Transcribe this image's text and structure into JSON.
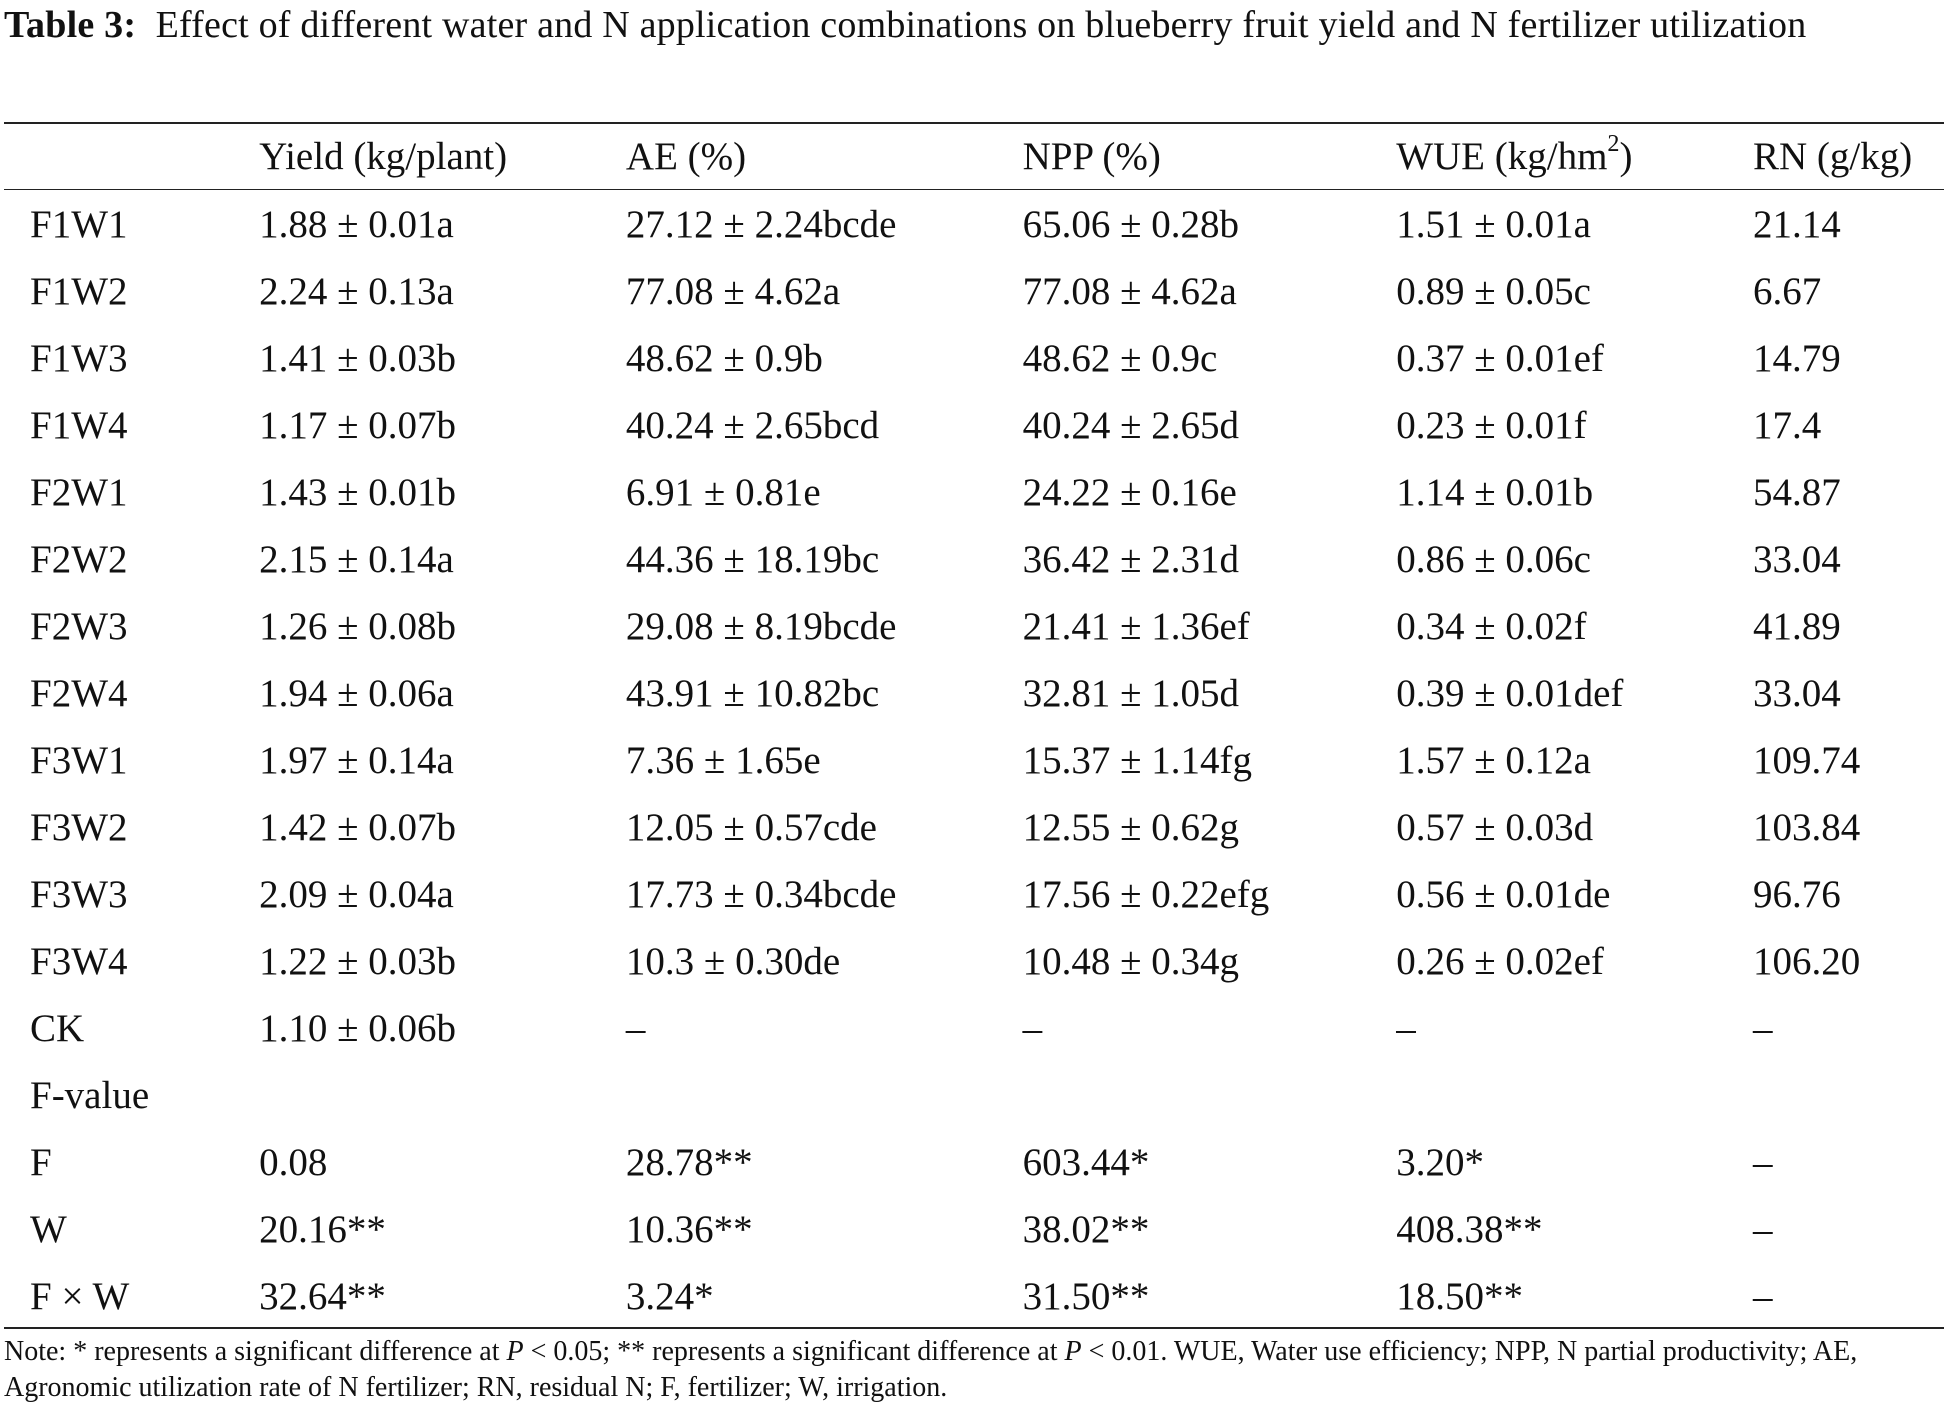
{
  "caption": {
    "label": "Table 3:",
    "text": "Effect of different water and N application combinations on blueberry fruit yield and N fertilizer utilization"
  },
  "table": {
    "headers": {
      "treatment": "",
      "yield": "Yield (kg/plant)",
      "ae": "AE (%)",
      "npp": "NPP (%)",
      "wue_prefix": "WUE (kg/hm",
      "wue_sup": "2",
      "wue_suffix": ")",
      "rn": "RN (g/kg)"
    },
    "rows": [
      [
        "F1W1",
        "1.88 ± 0.01a",
        "27.12 ± 2.24bcde",
        "65.06 ± 0.28b",
        "1.51 ± 0.01a",
        "21.14"
      ],
      [
        "F1W2",
        "2.24 ± 0.13a",
        "77.08 ± 4.62a",
        "77.08 ± 4.62a",
        "0.89 ± 0.05c",
        "6.67"
      ],
      [
        "F1W3",
        "1.41 ± 0.03b",
        "48.62 ± 0.9b",
        "48.62 ± 0.9c",
        "0.37 ± 0.01ef",
        "14.79"
      ],
      [
        "F1W4",
        "1.17 ± 0.07b",
        "40.24 ± 2.65bcd",
        "40.24 ± 2.65d",
        "0.23 ± 0.01f",
        "17.4"
      ],
      [
        "F2W1",
        "1.43 ± 0.01b",
        "6.91 ± 0.81e",
        "24.22 ± 0.16e",
        "1.14 ± 0.01b",
        "54.87"
      ],
      [
        "F2W2",
        "2.15 ± 0.14a",
        "44.36 ± 18.19bc",
        "36.42 ± 2.31d",
        "0.86 ± 0.06c",
        "33.04"
      ],
      [
        "F2W3",
        "1.26 ± 0.08b",
        "29.08 ± 8.19bcde",
        "21.41 ± 1.36ef",
        "0.34 ± 0.02f",
        "41.89"
      ],
      [
        "F2W4",
        "1.94 ± 0.06a",
        "43.91 ± 10.82bc",
        "32.81 ± 1.05d",
        "0.39 ± 0.01def",
        "33.04"
      ],
      [
        "F3W1",
        "1.97 ± 0.14a",
        "7.36 ± 1.65e",
        "15.37 ± 1.14fg",
        "1.57 ± 0.12a",
        "109.74"
      ],
      [
        "F3W2",
        "1.42 ± 0.07b",
        "12.05 ± 0.57cde",
        "12.55 ± 0.62g",
        "0.57 ± 0.03d",
        "103.84"
      ],
      [
        "F3W3",
        "2.09 ± 0.04a",
        "17.73 ± 0.34bcde",
        "17.56 ± 0.22efg",
        "0.56 ± 0.01de",
        "96.76"
      ],
      [
        "F3W4",
        "1.22 ± 0.03b",
        "10.3 ± 0.30de",
        "10.48 ± 0.34g",
        "0.26 ± 0.02ef",
        "106.20"
      ],
      [
        "CK",
        "1.10 ± 0.06b",
        "–",
        "–",
        "–",
        "–"
      ],
      [
        "F-value",
        "",
        "",
        "",
        "",
        ""
      ],
      [
        "F",
        "0.08",
        "28.78**",
        "603.44*",
        "3.20*",
        "–"
      ],
      [
        "W",
        "20.16**",
        "10.36**",
        "38.02**",
        "408.38**",
        "–"
      ],
      [
        "F × W",
        "32.64**",
        "3.24*",
        "31.50**",
        "18.50**",
        "–"
      ]
    ]
  },
  "note": {
    "part1": "Note: * represents a significant difference at ",
    "p1": "P",
    "part2": " < 0.05; ** represents a significant difference at ",
    "p2": "P",
    "part3": " < 0.01. WUE, Water use efficiency; NPP, N partial productivity; AE, Agronomic utilization rate of N fertilizer; RN, residual N; F, fertilizer; W, irrigation."
  }
}
